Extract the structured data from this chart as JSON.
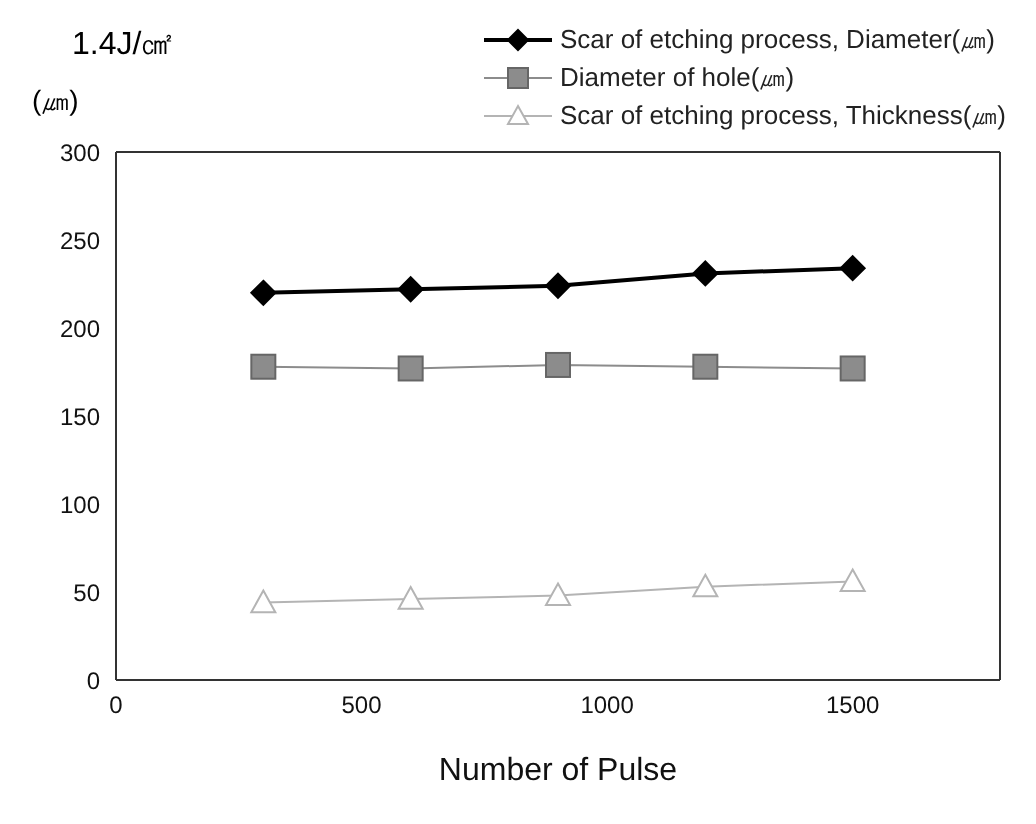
{
  "chart_data": {
    "type": "line",
    "title": "1.4J/㎠",
    "ylabel": "(㎛)",
    "xlabel": "Number of Pulse",
    "x": [
      300,
      600,
      900,
      1200,
      1500
    ],
    "series": [
      {
        "name": "Scar of etching process, Diameter(㎛)",
        "color": "#000000",
        "marker": "diamond",
        "values": [
          220,
          222,
          224,
          231,
          234
        ]
      },
      {
        "name": "Diameter of hole(㎛)",
        "color": "#8c8c8c",
        "marker": "square",
        "values": [
          178,
          177,
          179,
          178,
          177
        ]
      },
      {
        "name": "Scar of etching process, Thickness(㎛)",
        "color": "#b4b4b4",
        "marker": "triangle",
        "values": [
          44,
          46,
          48,
          53,
          56
        ]
      }
    ],
    "xlim": [
      0,
      1800
    ],
    "xticks": [
      0,
      500,
      1000,
      1500
    ],
    "ylim": [
      0,
      300
    ],
    "yticks": [
      0,
      50,
      100,
      150,
      200,
      250,
      300
    ],
    "grid": false,
    "legend": "top right"
  }
}
